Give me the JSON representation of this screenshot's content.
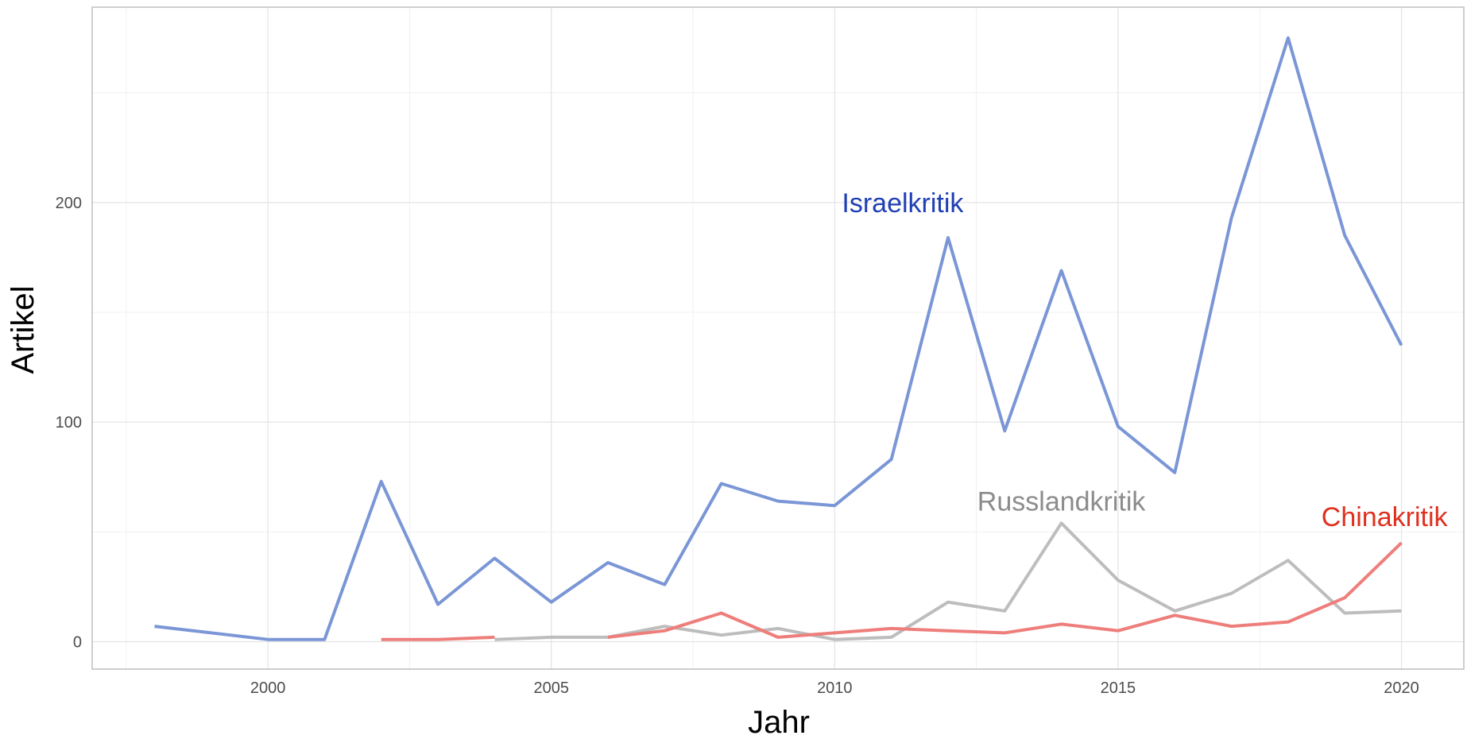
{
  "chart_data": {
    "type": "line",
    "title": "",
    "xlabel": "Jahr",
    "ylabel": "Artikel",
    "xlim": [
      1996.9,
      2021.1
    ],
    "ylim": [
      -12.5,
      289
    ],
    "x_ticks": [
      2000,
      2005,
      2010,
      2015,
      2020
    ],
    "x_minor_ticks": [
      1997.5,
      2002.5,
      2007.5,
      2012.5,
      2017.5
    ],
    "y_ticks": [
      0,
      100,
      200
    ],
    "y_minor_ticks": [
      50,
      150,
      250
    ],
    "grid": true,
    "legend": "none (direct labels)",
    "series": [
      {
        "name": "Israelkritik",
        "color": "#7b96d6",
        "label_color": "#1f3fb4",
        "label_at": [
          2011.2,
          200
        ],
        "segments": [
          [
            [
              1998,
              7
            ],
            [
              2000,
              1
            ],
            [
              2001,
              1
            ],
            [
              2002,
              73
            ],
            [
              2003,
              17
            ],
            [
              2004,
              38
            ],
            [
              2005,
              18
            ],
            [
              2006,
              36
            ],
            [
              2007,
              26
            ],
            [
              2008,
              72
            ],
            [
              2009,
              64
            ],
            [
              2010,
              62
            ],
            [
              2011,
              83
            ],
            [
              2012,
              184
            ],
            [
              2013,
              96
            ],
            [
              2014,
              169
            ],
            [
              2015,
              98
            ],
            [
              2016,
              77
            ],
            [
              2017,
              193
            ],
            [
              2018,
              275
            ],
            [
              2019,
              185
            ],
            [
              2020,
              135
            ]
          ]
        ]
      },
      {
        "name": "Russlandkritik",
        "color": "#bdbdbd",
        "label_color": "#8c8c8c",
        "label_at": [
          2014,
          64
        ],
        "segments": [
          [
            [
              2004,
              1
            ],
            [
              2005,
              2
            ],
            [
              2006,
              2
            ],
            [
              2007,
              7
            ],
            [
              2008,
              3
            ],
            [
              2009,
              6
            ],
            [
              2010,
              1
            ],
            [
              2011,
              2
            ],
            [
              2012,
              18
            ],
            [
              2013,
              14
            ],
            [
              2014,
              54
            ],
            [
              2015,
              28
            ],
            [
              2016,
              14
            ],
            [
              2017,
              22
            ],
            [
              2018,
              37
            ],
            [
              2019,
              13
            ],
            [
              2020,
              14
            ]
          ]
        ]
      },
      {
        "name": "Chinakritik",
        "color": "#ee7e7b",
        "label_color": "#e0301e",
        "label_at": [
          2019.7,
          57
        ],
        "segments": [
          [
            [
              2002,
              1
            ],
            [
              2003,
              1
            ],
            [
              2004,
              2
            ]
          ],
          [
            [
              2006,
              2
            ],
            [
              2007,
              5
            ],
            [
              2008,
              13
            ],
            [
              2009,
              2
            ],
            [
              2010,
              4
            ],
            [
              2011,
              6
            ],
            [
              2012,
              5
            ],
            [
              2013,
              4
            ],
            [
              2014,
              8
            ],
            [
              2015,
              5
            ],
            [
              2016,
              12
            ],
            [
              2017,
              7
            ],
            [
              2018,
              9
            ],
            [
              2019,
              20
            ],
            [
              2020,
              45
            ]
          ]
        ]
      }
    ]
  }
}
